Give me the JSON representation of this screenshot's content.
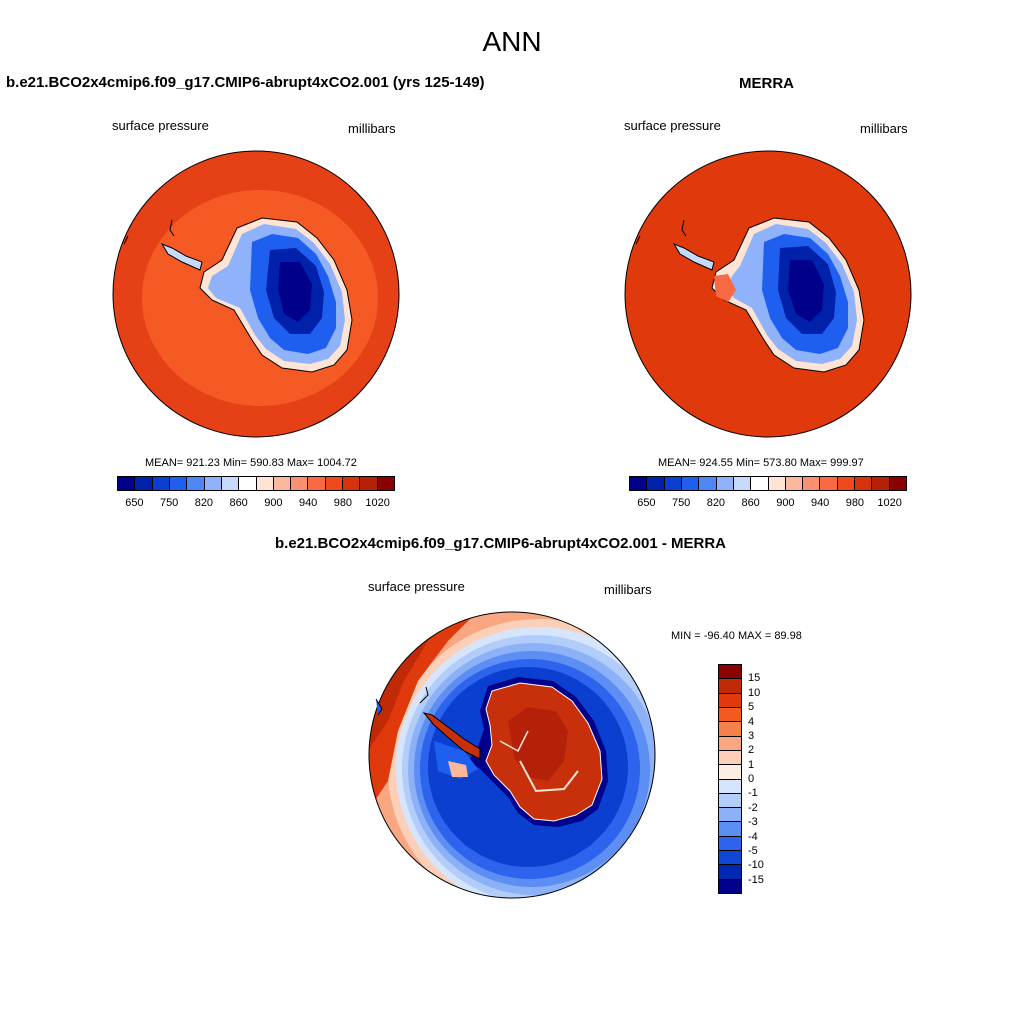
{
  "figure": {
    "title": "ANN"
  },
  "panels": {
    "model": {
      "title": "b.e21.BCO2x4cmip6.f09_g17.CMIP6-abrupt4xCO2.001 (yrs 125-149)",
      "left_label": "surface pressure",
      "right_label": "millibars",
      "stats": "MEAN= 921.23  Min= 590.83  Max= 1004.72"
    },
    "obs": {
      "title": "MERRA",
      "left_label": "surface pressure",
      "right_label": "millibars",
      "stats": "MEAN= 924.55  Min= 573.80  Max= 999.97"
    },
    "diff": {
      "title": "b.e21.BCO2x4cmip6.f09_g17.CMIP6-abrupt4xCO2.001 - MERRA",
      "left_label": "surface pressure",
      "right_label": "millibars",
      "stats": "MIN = -96.40 MAX =  89.98"
    }
  },
  "colorbars": {
    "abs": {
      "colors": [
        "#00008b",
        "#0022aa",
        "#0a3fd0",
        "#1f5ff0",
        "#4f86f5",
        "#8fb2fa",
        "#c6dbfc",
        "#ffffff",
        "#fde4d4",
        "#fbb89a",
        "#f99072",
        "#f76a45",
        "#ee4a1c",
        "#d8320c",
        "#b52108",
        "#8b0000"
      ],
      "ticks": [
        "650",
        "750",
        "820",
        "860",
        "900",
        "940",
        "980",
        "1020"
      ]
    },
    "diff": {
      "colors": [
        "#8b0000",
        "#c12a06",
        "#e03a0c",
        "#f25a21",
        "#f5804d",
        "#f9a783",
        "#fcd0b8",
        "#fdeee4",
        "#d6e5fb",
        "#b3cdfa",
        "#8cb1f7",
        "#5d8ef3",
        "#2e63ee",
        "#0f46d6",
        "#0028b0",
        "#00008b"
      ],
      "ticks": [
        "15",
        "10",
        "5",
        "4",
        "3",
        "2",
        "1",
        "0",
        "-1",
        "-2",
        "-3",
        "-4",
        "-5",
        "-10",
        "-15"
      ]
    }
  },
  "colors": {
    "model_ocean": "#e64016",
    "model_ring": "#f55a25",
    "obs_ocean": "#e03a0c",
    "diff_ocean": "#0a3fd0",
    "diff_land": "#c8300c"
  }
}
